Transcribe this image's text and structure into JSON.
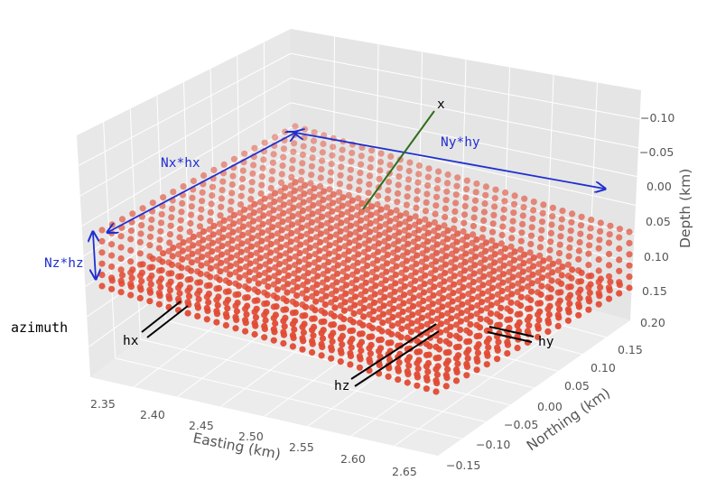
{
  "figure": {
    "x_axis_label": "Easting (km)",
    "y_axis_label": "Northing (km)",
    "z_axis_label": "Depth (km)",
    "x_ticks": [
      "2.35",
      "2.40",
      "2.45",
      "2.50",
      "2.55",
      "2.60",
      "2.65"
    ],
    "y_ticks": [
      "−0.15",
      "−0.10",
      "−0.05",
      "0.00",
      "0.05",
      "0.10",
      "0.15"
    ],
    "z_ticks": [
      "−0.10",
      "−0.05",
      "0.00",
      "0.05",
      "0.10",
      "0.15",
      "0.20"
    ],
    "annotations": {
      "nx": "Nx*hx",
      "ny": "Ny*hy",
      "nz": "Nz*hz",
      "x": "x",
      "hx": "hx",
      "hy": "hy",
      "hz": "hz",
      "azimuth": "azimuth"
    },
    "colors": {
      "pane": "#e5e5e5",
      "grid": "#ffffff",
      "points": "#e24a33",
      "dimension_arrows": "#1f2fd0",
      "x_vector": "#2e6d1a",
      "cell_size_bars": "#000000",
      "annotation_text": "#1f2fd0"
    }
  }
}
